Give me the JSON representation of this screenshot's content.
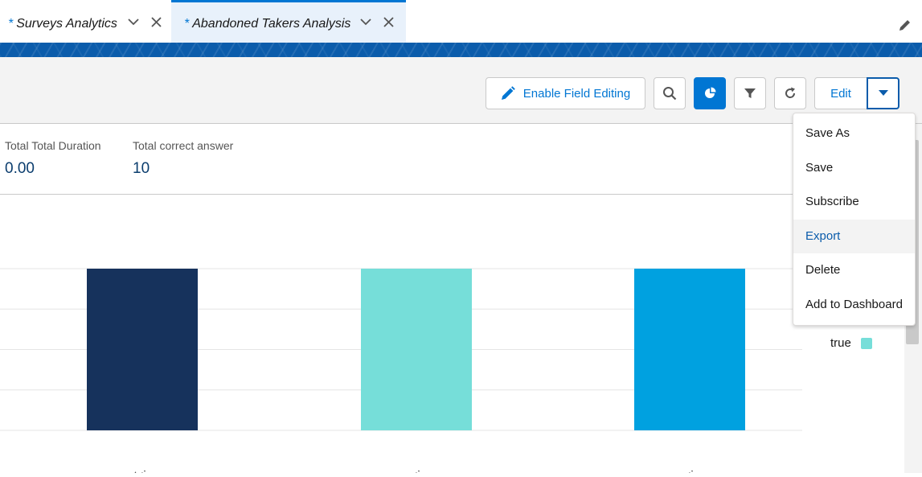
{
  "tabs": [
    {
      "label": "Surveys Analytics",
      "modified_marker": "*"
    },
    {
      "label": "Abandoned Takers Analysis",
      "modified_marker": "*"
    }
  ],
  "header": {
    "enable_field_editing_label": "Enable Field Editing",
    "edit_label": "Edit"
  },
  "summary": [
    {
      "label": "Total Total Duration",
      "value": "0.00"
    },
    {
      "label": "Total correct answer",
      "value": "10"
    }
  ],
  "dropdown": {
    "items": [
      "Save As",
      "Save",
      "Subscribe",
      "Export",
      "Delete",
      "Add to Dashboard"
    ],
    "highlighted": "Export"
  },
  "chart_data": {
    "type": "bar",
    "categories": [
      "Repr...",
      "Rep...",
      "of th..."
    ],
    "values": [
      4,
      4,
      4
    ],
    "colors": [
      "#16325c",
      "#76ded9",
      "#00a1e0"
    ],
    "grid": true,
    "legend": [
      {
        "name": "true",
        "color": "#76ded9"
      }
    ],
    "legend_position": "right",
    "ylim": [
      0,
      4
    ]
  },
  "colors": {
    "brand": "#0176d3",
    "banner": "#0b5cab",
    "header_bg": "#f3f3f3"
  }
}
